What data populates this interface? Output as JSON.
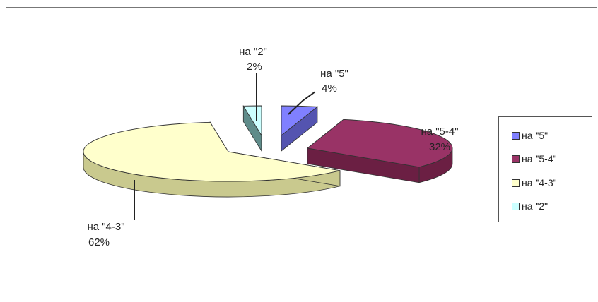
{
  "chart_data": {
    "type": "pie",
    "title": "",
    "slices": [
      {
        "name": "на \"5\"",
        "value": 4,
        "label_name": "на \"5\"",
        "label_pct": "4%",
        "color": "#8080ff",
        "side": "#5454b0"
      },
      {
        "name": "на \"5-4\"",
        "value": 32,
        "label_name": "на \"5-4\"",
        "label_pct": "32%",
        "color": "#993366",
        "side": "#6b1f43"
      },
      {
        "name": "на \"4-3\"",
        "value": 62,
        "label_name": "на \"4-3\"",
        "label_pct": "62%",
        "color": "#ffffcc",
        "side": "#c9c98e"
      },
      {
        "name": "на \"2\"",
        "value": 2,
        "label_name": "на \"2\"",
        "label_pct": "2%",
        "color": "#ccffff",
        "side": "#5f8c8a"
      }
    ],
    "legend": {
      "position": "right",
      "items": [
        "на \"5\"",
        "на \"5-4\"",
        "на \"4-3\"",
        "на \"2\""
      ]
    }
  }
}
